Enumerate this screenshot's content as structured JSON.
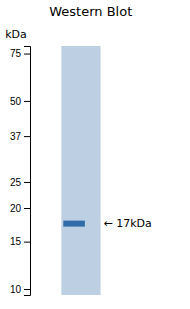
{
  "chart_data": {
    "type": "gel",
    "title": "Western Blot",
    "values": [
      17.5
    ],
    "color": "#2060a0",
    "annotations": [
      {
        "text": "kDa"
      },
      {
        "text": "← 17kDa",
        "y": 17.5
      }
    ],
    "log": "y",
    "ylim": [
      9.5,
      80
    ],
    "yticks": [
      75,
      50,
      37,
      25,
      20,
      15,
      10
    ],
    "grid": false,
    "tick_labels": "y"
  }
}
